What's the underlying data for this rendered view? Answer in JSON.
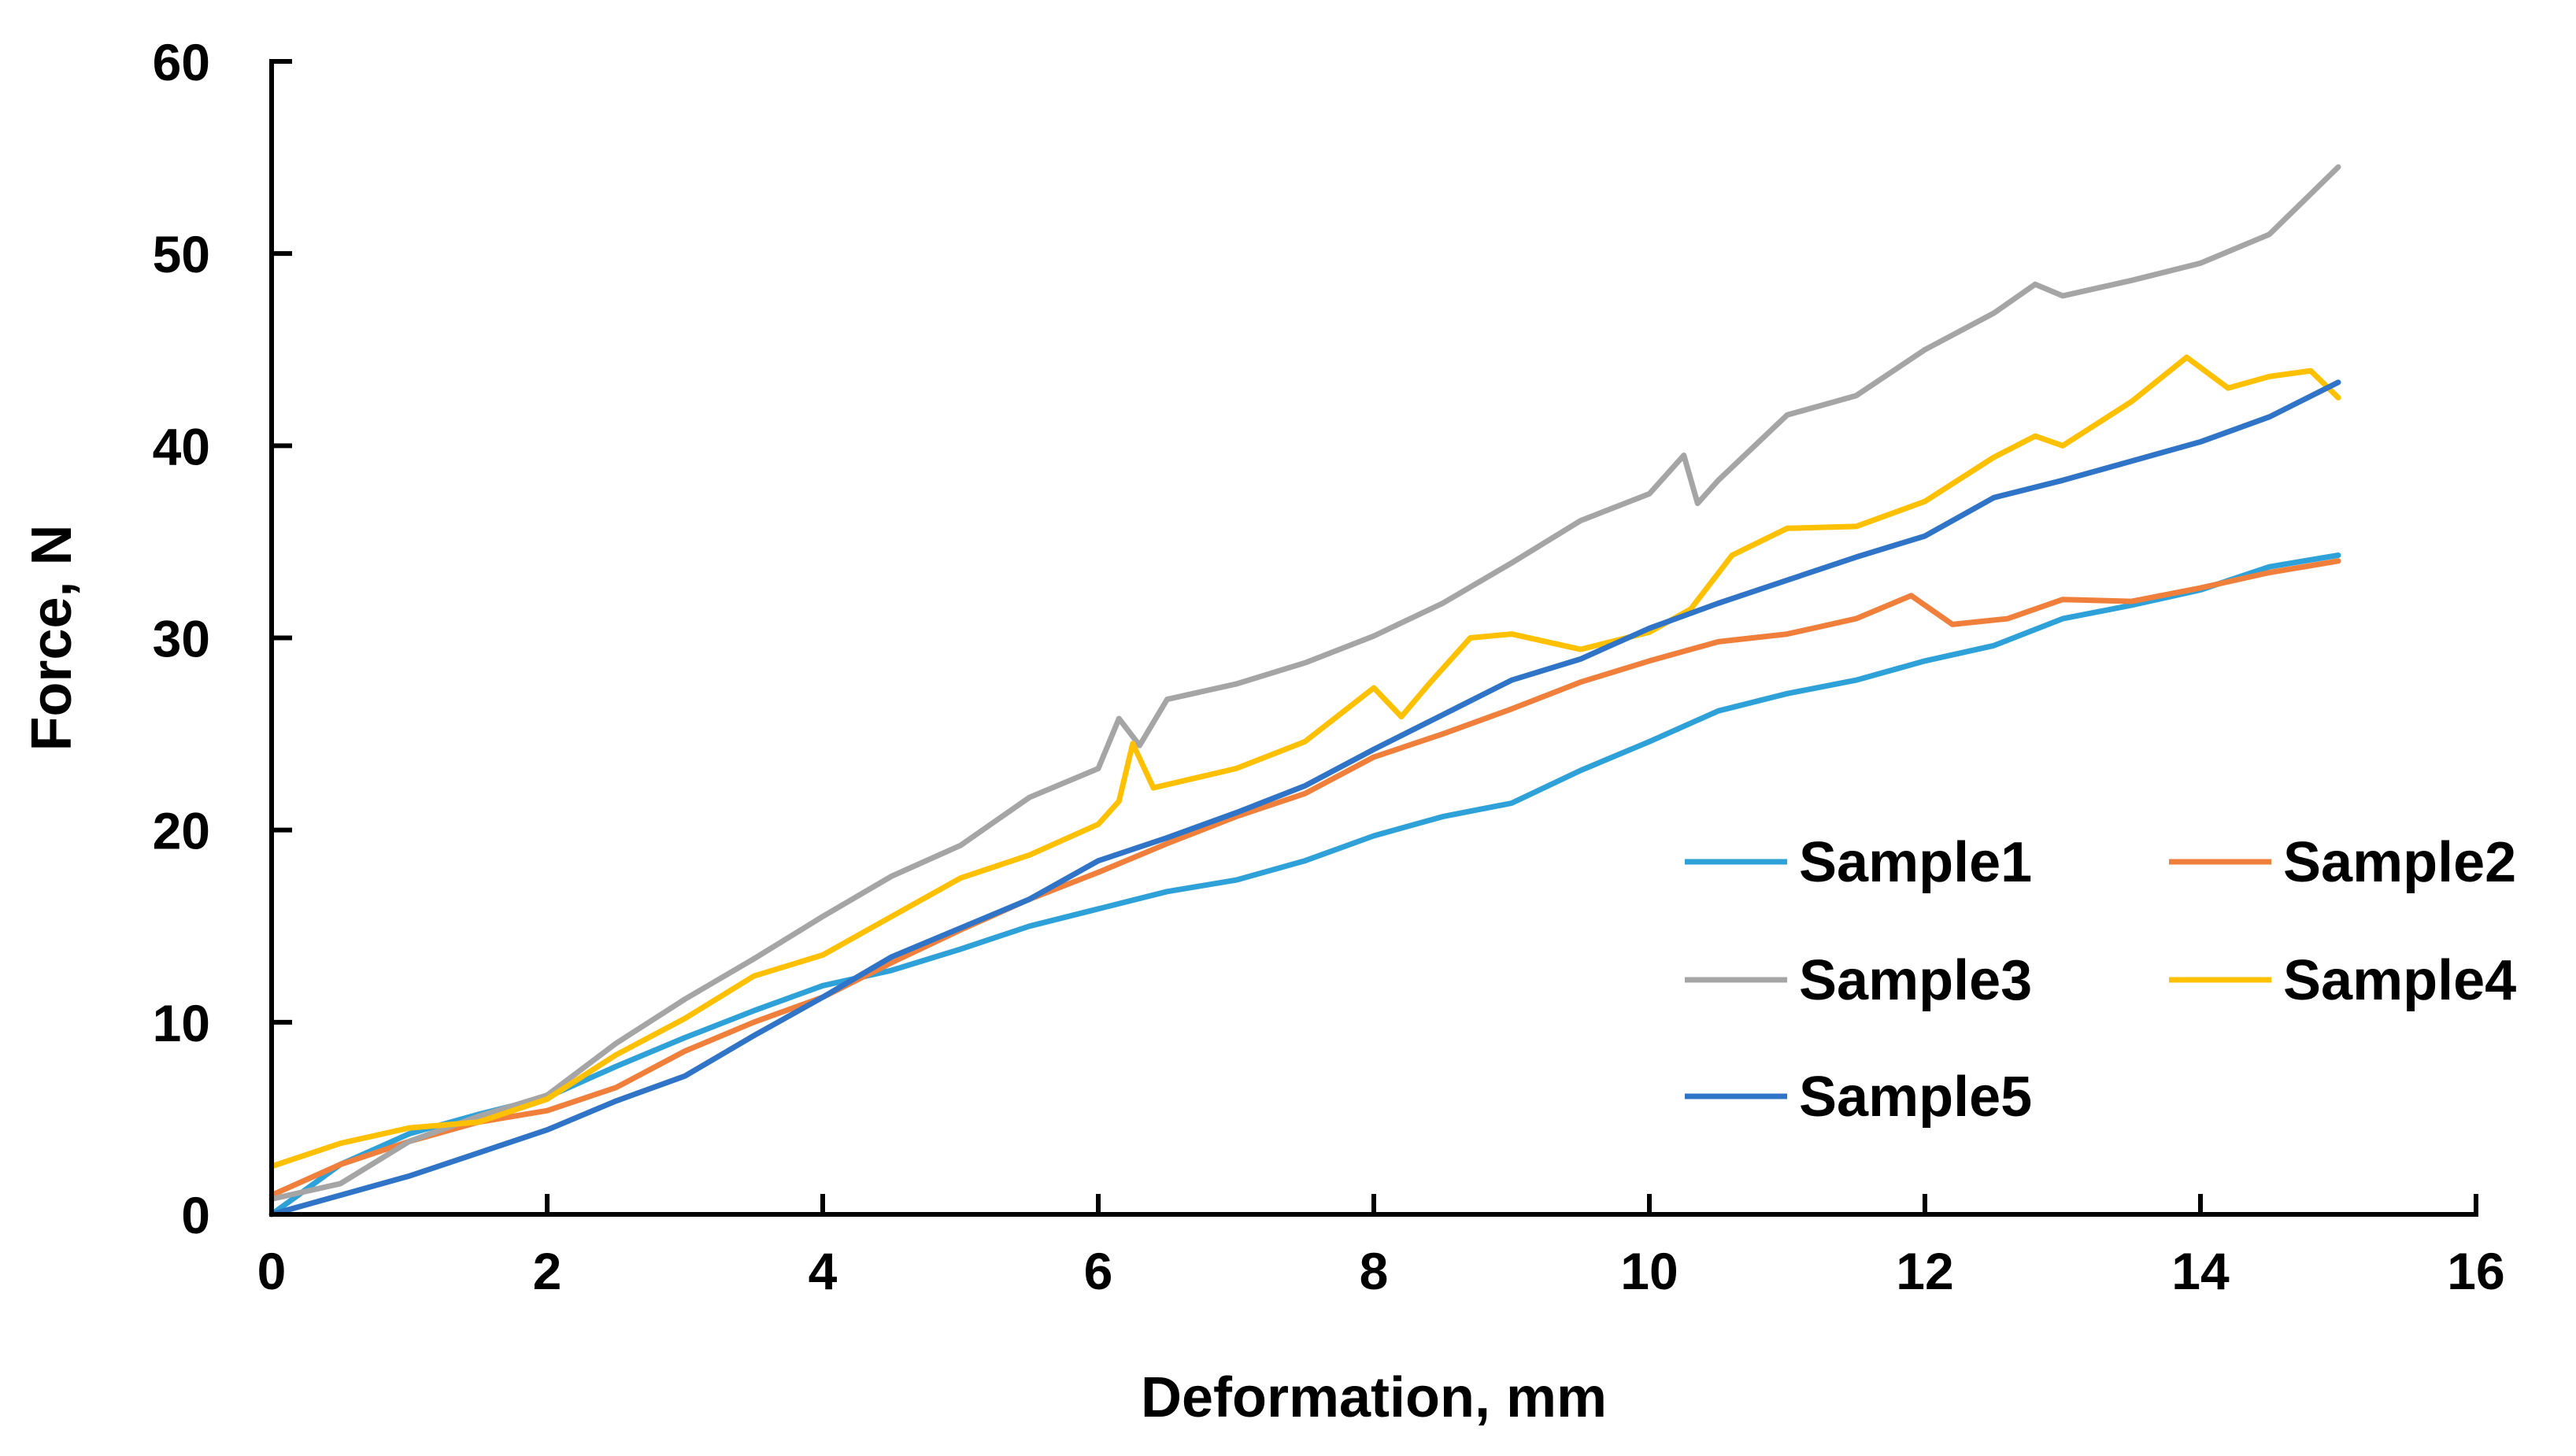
{
  "chart_data": {
    "type": "line",
    "title": "",
    "xlabel": "Deformation, mm",
    "ylabel": "Force, N",
    "xlim": [
      0,
      16
    ],
    "ylim": [
      0,
      60
    ],
    "x_ticks": [
      0,
      2,
      4,
      6,
      8,
      10,
      12,
      14,
      16
    ],
    "y_ticks": [
      0,
      10,
      20,
      30,
      40,
      50,
      60
    ],
    "x_tick_labels": [
      "0",
      "2",
      "4",
      "6",
      "8",
      "10",
      "12",
      "14",
      "16"
    ],
    "y_tick_labels": [
      "0",
      "10",
      "20",
      "30",
      "40",
      "50",
      "60"
    ],
    "grid": false,
    "legend_position": "lower-right",
    "series": [
      {
        "name": "Sample1",
        "color": "#2ea1d9",
        "x": [
          0,
          0.5,
          1,
          1.5,
          2,
          2.5,
          3,
          3.5,
          4,
          4.5,
          5,
          5.5,
          6,
          6.5,
          7,
          7.5,
          8,
          8.5,
          9,
          9.5,
          10,
          10.5,
          11,
          11.5,
          12,
          12.5,
          13,
          13.5,
          14,
          14.5,
          15
        ],
        "y": [
          0,
          2.6,
          4.2,
          5.2,
          6.1,
          7.7,
          9.2,
          10.6,
          11.9,
          12.7,
          13.8,
          15.0,
          15.9,
          16.8,
          17.4,
          18.4,
          19.7,
          20.7,
          21.4,
          23.1,
          24.6,
          26.2,
          27.1,
          27.8,
          28.8,
          29.6,
          31.0,
          31.7,
          32.5,
          33.7,
          34.3
        ]
      },
      {
        "name": "Sample2",
        "color": "#f07f3c",
        "x": [
          0,
          0.5,
          1,
          1.5,
          2,
          2.5,
          3,
          3.5,
          4,
          4.5,
          5,
          5.5,
          6,
          6.5,
          7,
          7.5,
          8,
          8.5,
          9,
          9.5,
          10,
          10.5,
          11,
          11.5,
          11.9,
          12.2,
          12.6,
          13,
          13.5,
          14,
          14.5,
          15
        ],
        "y": [
          1.0,
          2.6,
          3.8,
          4.8,
          5.4,
          6.6,
          8.5,
          10.0,
          11.3,
          13.1,
          14.8,
          16.4,
          17.8,
          19.3,
          20.7,
          21.9,
          23.8,
          25.0,
          26.3,
          27.7,
          28.8,
          29.8,
          30.2,
          31.0,
          32.2,
          30.7,
          31.0,
          32.0,
          31.9,
          32.6,
          33.4,
          34.0
        ]
      },
      {
        "name": "Sample3",
        "color": "#a5a5a5",
        "x": [
          0,
          0.5,
          1,
          1.5,
          2,
          2.5,
          3,
          3.5,
          4,
          4.5,
          5,
          5.5,
          6,
          6.15,
          6.3,
          6.5,
          7,
          7.5,
          8,
          8.5,
          9,
          9.5,
          10,
          10.25,
          10.35,
          10.5,
          11,
          11.5,
          12,
          12.5,
          12.8,
          13,
          13.5,
          14,
          14.5,
          15
        ],
        "y": [
          0.8,
          1.6,
          3.8,
          5.1,
          6.2,
          8.9,
          11.2,
          13.3,
          15.5,
          17.6,
          19.2,
          21.7,
          23.2,
          25.8,
          24.4,
          26.8,
          27.6,
          28.7,
          30.1,
          31.8,
          33.9,
          36.1,
          37.5,
          39.5,
          37.0,
          38.2,
          41.6,
          42.6,
          45.0,
          46.9,
          48.4,
          47.8,
          48.6,
          49.5,
          51.0,
          54.5
        ]
      },
      {
        "name": "Sample4",
        "color": "#ffc000",
        "x": [
          0,
          0.5,
          1,
          1.5,
          2,
          2.5,
          3,
          3.5,
          4,
          4.5,
          5,
          5.5,
          6,
          6.15,
          6.25,
          6.4,
          7,
          7.5,
          8,
          8.2,
          8.4,
          8.7,
          9,
          9.5,
          10,
          10.3,
          10.6,
          11,
          11.5,
          12,
          12.5,
          12.8,
          13,
          13.5,
          13.9,
          14.2,
          14.5,
          14.8,
          15
        ],
        "y": [
          2.5,
          3.7,
          4.5,
          4.8,
          6.0,
          8.3,
          10.2,
          12.4,
          13.5,
          15.5,
          17.5,
          18.7,
          20.3,
          21.5,
          24.5,
          22.2,
          23.2,
          24.6,
          27.4,
          25.9,
          27.6,
          30.0,
          30.2,
          29.4,
          30.3,
          31.5,
          34.3,
          35.7,
          35.8,
          37.1,
          39.4,
          40.5,
          40.0,
          42.3,
          44.6,
          43.0,
          43.6,
          43.9,
          42.5
        ]
      },
      {
        "name": "Sample5",
        "color": "#2f74c7",
        "x": [
          0,
          0.5,
          1,
          1.5,
          2,
          2.5,
          3,
          3.5,
          4,
          4.5,
          5,
          5.5,
          6,
          6.5,
          7,
          7.5,
          8,
          8.5,
          9,
          9.5,
          10,
          10.5,
          11,
          11.5,
          12,
          12.5,
          13,
          13.5,
          14,
          14.5,
          15
        ],
        "y": [
          0,
          1.0,
          2.0,
          3.2,
          4.4,
          5.9,
          7.2,
          9.3,
          11.3,
          13.4,
          14.9,
          16.4,
          18.4,
          19.6,
          20.9,
          22.3,
          24.2,
          26.0,
          27.8,
          28.9,
          30.5,
          31.8,
          33.0,
          34.2,
          35.3,
          37.3,
          38.2,
          39.2,
          40.2,
          41.5,
          43.3
        ]
      }
    ]
  }
}
